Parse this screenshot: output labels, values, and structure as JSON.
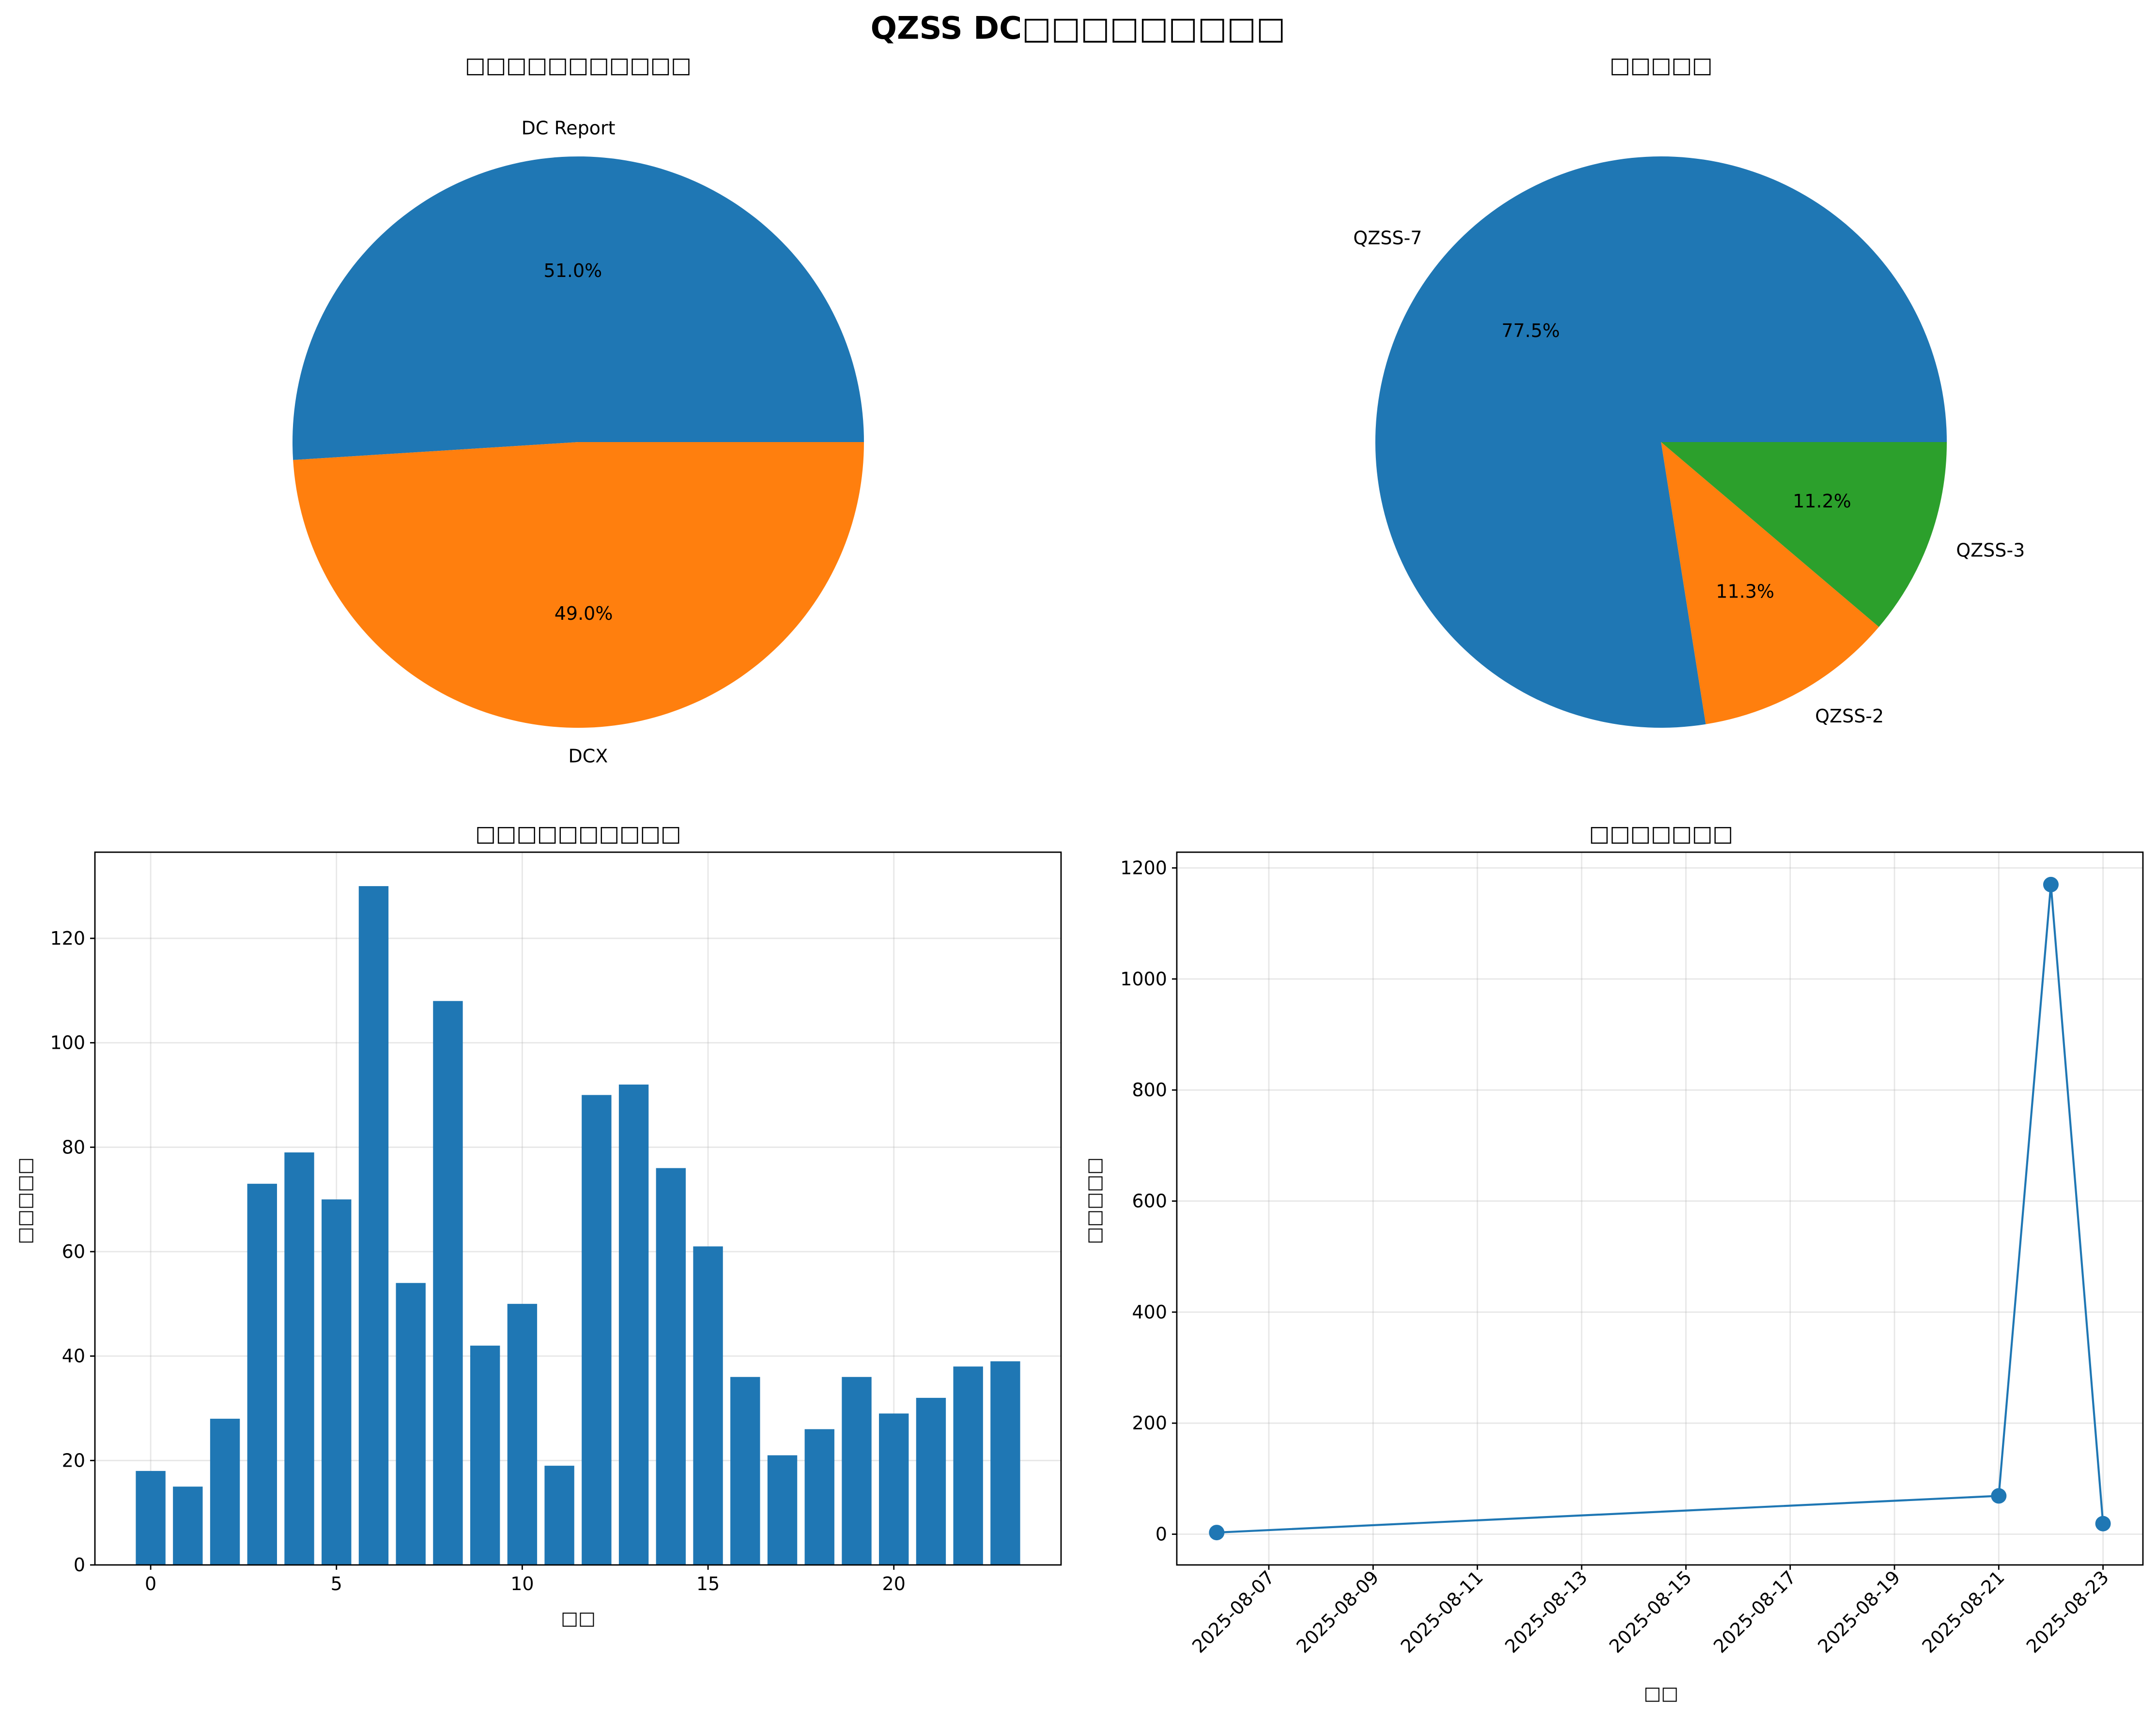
{
  "suptitle": "QZSS DC□□□□□□□□□",
  "chart_data": [
    {
      "type": "pie",
      "title": "□□□□□□□□□□□",
      "labels": [
        "DC Report",
        "DCX"
      ],
      "values": [
        51.0,
        49.0
      ],
      "autopct": [
        "51.0%",
        "49.0%"
      ],
      "colors": [
        "#1f77b4",
        "#ff7f0e"
      ]
    },
    {
      "type": "pie",
      "title": "□□□□□",
      "labels": [
        "QZSS-7",
        "QZSS-2",
        "QZSS-3"
      ],
      "values": [
        77.5,
        11.3,
        11.2
      ],
      "autopct": [
        "77.5%",
        "11.3%",
        "11.2%"
      ],
      "colors": [
        "#1f77b4",
        "#ff7f0e",
        "#2ca02c"
      ]
    },
    {
      "type": "bar",
      "title": "□□□□□□□□□□",
      "xlabel": "□□",
      "ylabel": "□□□□□",
      "categories": [
        0,
        1,
        2,
        3,
        4,
        5,
        6,
        7,
        8,
        9,
        10,
        11,
        12,
        13,
        14,
        15,
        16,
        17,
        18,
        19,
        20,
        21,
        22,
        23
      ],
      "values": [
        18,
        15,
        28,
        73,
        79,
        70,
        130,
        54,
        108,
        42,
        50,
        19,
        90,
        92,
        76,
        61,
        36,
        21,
        26,
        36,
        29,
        32,
        38,
        39
      ],
      "xticks": [
        0,
        5,
        10,
        15,
        20
      ],
      "yticks": [
        0,
        20,
        40,
        60,
        80,
        100,
        120
      ],
      "xlim": [
        -1.5,
        24.5
      ],
      "ylim": [
        0,
        136.5
      ],
      "grid": true,
      "color": "#1f77b4"
    },
    {
      "type": "line",
      "title": "□□□□□□□",
      "xlabel": "□□",
      "ylabel": "□□□□□",
      "x": [
        "2025-08-06",
        "2025-08-21",
        "2025-08-22",
        "2025-08-23"
      ],
      "y": [
        3,
        69,
        1170,
        19
      ],
      "xticks": [
        "2025-08-07",
        "2025-08-09",
        "2025-08-11",
        "2025-08-13",
        "2025-08-15",
        "2025-08-17",
        "2025-08-19",
        "2025-08-21",
        "2025-08-23"
      ],
      "yticks": [
        0,
        200,
        400,
        600,
        800,
        1000,
        1200
      ],
      "xlim": [
        "2025-08-05 05:38",
        "2025-08-23 18:22"
      ],
      "ylim": [
        -55.35,
        1228.35
      ],
      "grid": true,
      "marker": "circle",
      "color": "#1f77b4"
    }
  ]
}
